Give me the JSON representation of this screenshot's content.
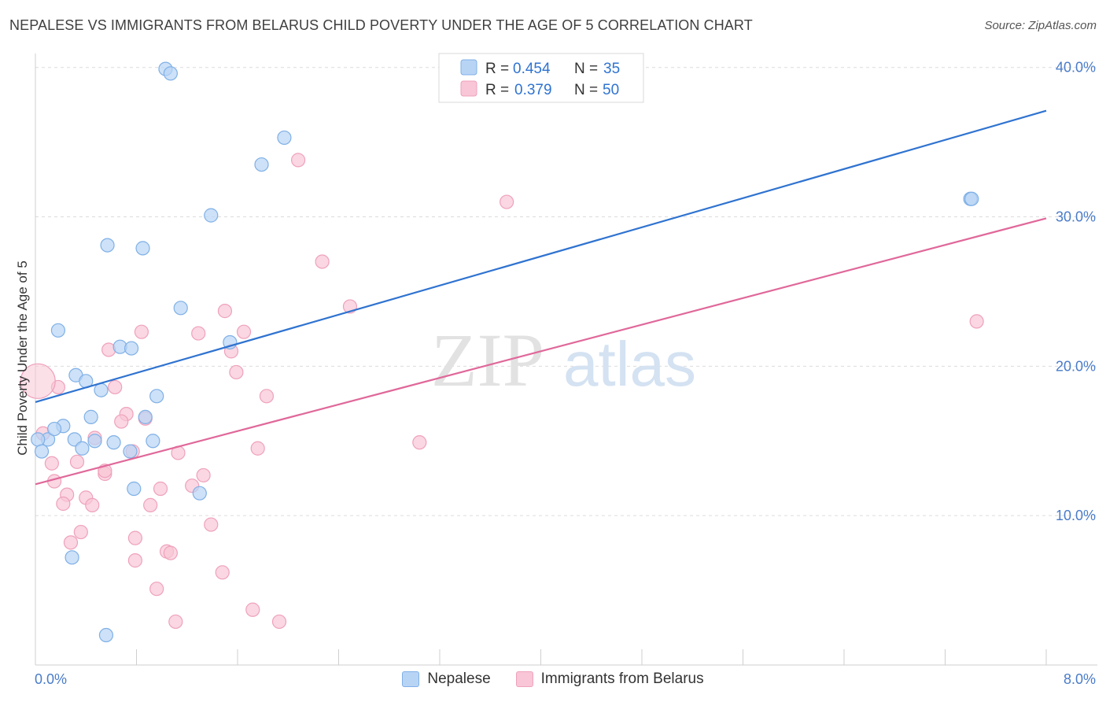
{
  "title": "NEPALESE VS IMMIGRANTS FROM BELARUS CHILD POVERTY UNDER THE AGE OF 5 CORRELATION CHART",
  "source": "Source: ZipAtlas.com",
  "watermark": {
    "zip": "ZIP",
    "atlas": "atlas"
  },
  "colors": {
    "blue_fill": "#b8d4f5",
    "blue_stroke": "#7fb0e6",
    "blue_line": "#2f73d0",
    "pink_fill": "#f8c6d6",
    "pink_stroke": "#efa1bb",
    "pink_line": "#e0689a",
    "axis_text": "#4a7cc9",
    "grid": "#dcdcdc"
  },
  "chart_data": {
    "type": "scatter",
    "xlabel": "",
    "ylabel": "Child Poverty Under the Age of 5",
    "xlim": [
      0,
      8.4
    ],
    "ylim": [
      0,
      42
    ],
    "x_tick_labels": {
      "min": "0.0%",
      "max": "8.0%"
    },
    "y_ticks": [
      10,
      20,
      30,
      40
    ],
    "y_tick_labels": [
      "10.0%",
      "20.0%",
      "30.0%",
      "40.0%"
    ],
    "legend": [
      {
        "series": "Nepalese",
        "r_label": "R =",
        "r_value": "0.454",
        "n_label": "N =",
        "n_value": "35"
      },
      {
        "series": "Immigrants from Belarus",
        "r_label": "R =",
        "r_value": "0.379",
        "n_label": "N =",
        "n_value": "50"
      }
    ],
    "series": [
      {
        "name": "Nepalese",
        "color_key": "blue",
        "trend": {
          "x0": 0,
          "y0": 17.6,
          "x1": 8,
          "y1": 37.1
        },
        "points": [
          [
            1.03,
            39.9
          ],
          [
            1.07,
            39.6
          ],
          [
            1.97,
            35.3
          ],
          [
            1.79,
            33.5
          ],
          [
            1.39,
            30.1
          ],
          [
            7.4,
            31.2
          ],
          [
            7.41,
            31.2
          ],
          [
            0.57,
            28.1
          ],
          [
            0.85,
            27.9
          ],
          [
            1.15,
            23.9
          ],
          [
            0.18,
            22.4
          ],
          [
            0.67,
            21.3
          ],
          [
            0.76,
            21.2
          ],
          [
            1.54,
            21.6
          ],
          [
            0.32,
            19.4
          ],
          [
            0.4,
            19.0
          ],
          [
            0.52,
            18.4
          ],
          [
            0.96,
            18.0
          ],
          [
            0.44,
            16.6
          ],
          [
            0.22,
            16.0
          ],
          [
            0.31,
            15.1
          ],
          [
            0.1,
            15.1
          ],
          [
            0.87,
            16.6
          ],
          [
            0.15,
            15.8
          ],
          [
            0.02,
            15.1
          ],
          [
            0.47,
            15.0
          ],
          [
            0.62,
            14.9
          ],
          [
            0.75,
            14.3
          ],
          [
            0.93,
            15.0
          ],
          [
            0.37,
            14.5
          ],
          [
            0.05,
            14.3
          ],
          [
            0.78,
            11.8
          ],
          [
            1.3,
            11.5
          ],
          [
            0.29,
            7.2
          ],
          [
            0.56,
            2.0
          ]
        ]
      },
      {
        "name": "Immigrants from Belarus",
        "color_key": "pink",
        "trend": {
          "x0": 0,
          "y0": 12.1,
          "x1": 8,
          "y1": 29.9
        },
        "points": [
          [
            2.08,
            33.8
          ],
          [
            3.73,
            31.0
          ],
          [
            2.27,
            27.0
          ],
          [
            2.49,
            24.0
          ],
          [
            7.45,
            23.0
          ],
          [
            1.5,
            23.7
          ],
          [
            1.65,
            22.3
          ],
          [
            0.84,
            22.3
          ],
          [
            1.29,
            22.2
          ],
          [
            0.58,
            21.1
          ],
          [
            1.55,
            21.0
          ],
          [
            1.59,
            19.6
          ],
          [
            0.18,
            18.6
          ],
          [
            0.63,
            18.6
          ],
          [
            1.83,
            18.0
          ],
          [
            0.72,
            16.8
          ],
          [
            0.87,
            16.5
          ],
          [
            0.68,
            16.3
          ],
          [
            0.47,
            15.2
          ],
          [
            0.06,
            15.5
          ],
          [
            3.04,
            14.9
          ],
          [
            1.76,
            14.5
          ],
          [
            1.13,
            14.2
          ],
          [
            0.77,
            14.3
          ],
          [
            0.33,
            13.6
          ],
          [
            0.13,
            13.5
          ],
          [
            0.55,
            12.8
          ],
          [
            0.55,
            13.0
          ],
          [
            1.33,
            12.7
          ],
          [
            1.24,
            12.0
          ],
          [
            0.99,
            11.8
          ],
          [
            0.15,
            12.3
          ],
          [
            0.25,
            11.4
          ],
          [
            0.4,
            11.2
          ],
          [
            0.22,
            10.8
          ],
          [
            0.45,
            10.7
          ],
          [
            0.91,
            10.7
          ],
          [
            1.39,
            9.4
          ],
          [
            0.36,
            8.9
          ],
          [
            0.79,
            8.5
          ],
          [
            0.28,
            8.2
          ],
          [
            1.04,
            7.6
          ],
          [
            1.07,
            7.5
          ],
          [
            0.79,
            7.0
          ],
          [
            1.48,
            6.2
          ],
          [
            0.96,
            5.1
          ],
          [
            1.72,
            3.7
          ],
          [
            1.11,
            2.9
          ],
          [
            1.93,
            2.9
          ],
          [
            0.02,
            19.0
          ]
        ]
      }
    ]
  }
}
